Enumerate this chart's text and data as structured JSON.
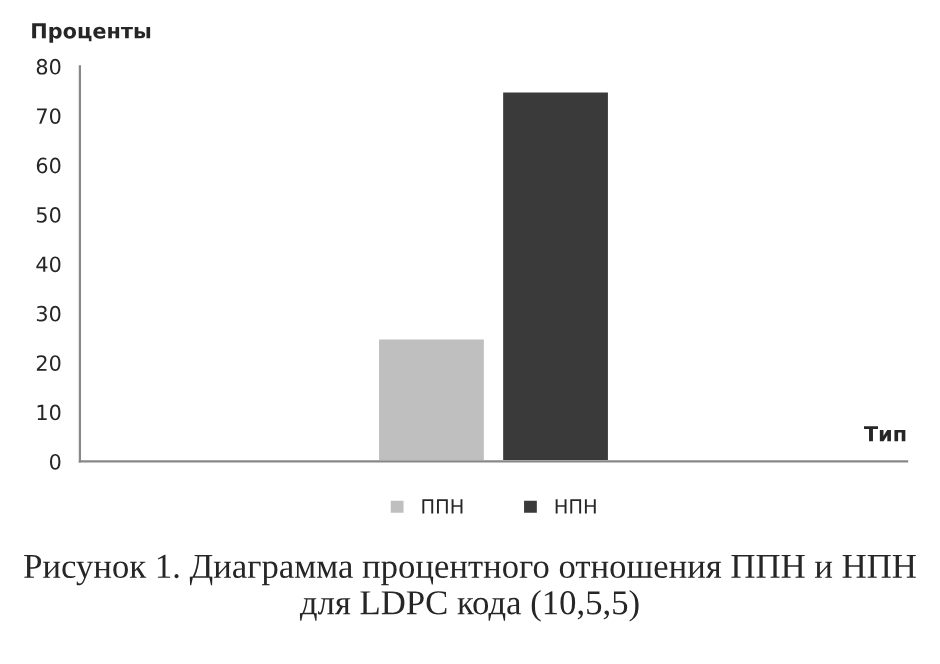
{
  "chart_data": {
    "type": "bar",
    "categories": [
      null
    ],
    "series": [
      {
        "name": "ППН",
        "color": "#bfbfbf",
        "values": [
          25
        ]
      },
      {
        "name": "НПН",
        "color": "#3a3a3a",
        "values": [
          75
        ]
      }
    ],
    "ylabel": "Проценты",
    "xlabel": "Тип",
    "ylim": [
      0,
      80
    ],
    "yticks": [
      0,
      10,
      20,
      30,
      40,
      50,
      60,
      70,
      80
    ],
    "grid": false,
    "legend": "bottom",
    "annotations": [
      "Рисунок 1. Диаграмма процентного отношения ППН и НПН для LDPC кода (10,5,5)"
    ]
  }
}
